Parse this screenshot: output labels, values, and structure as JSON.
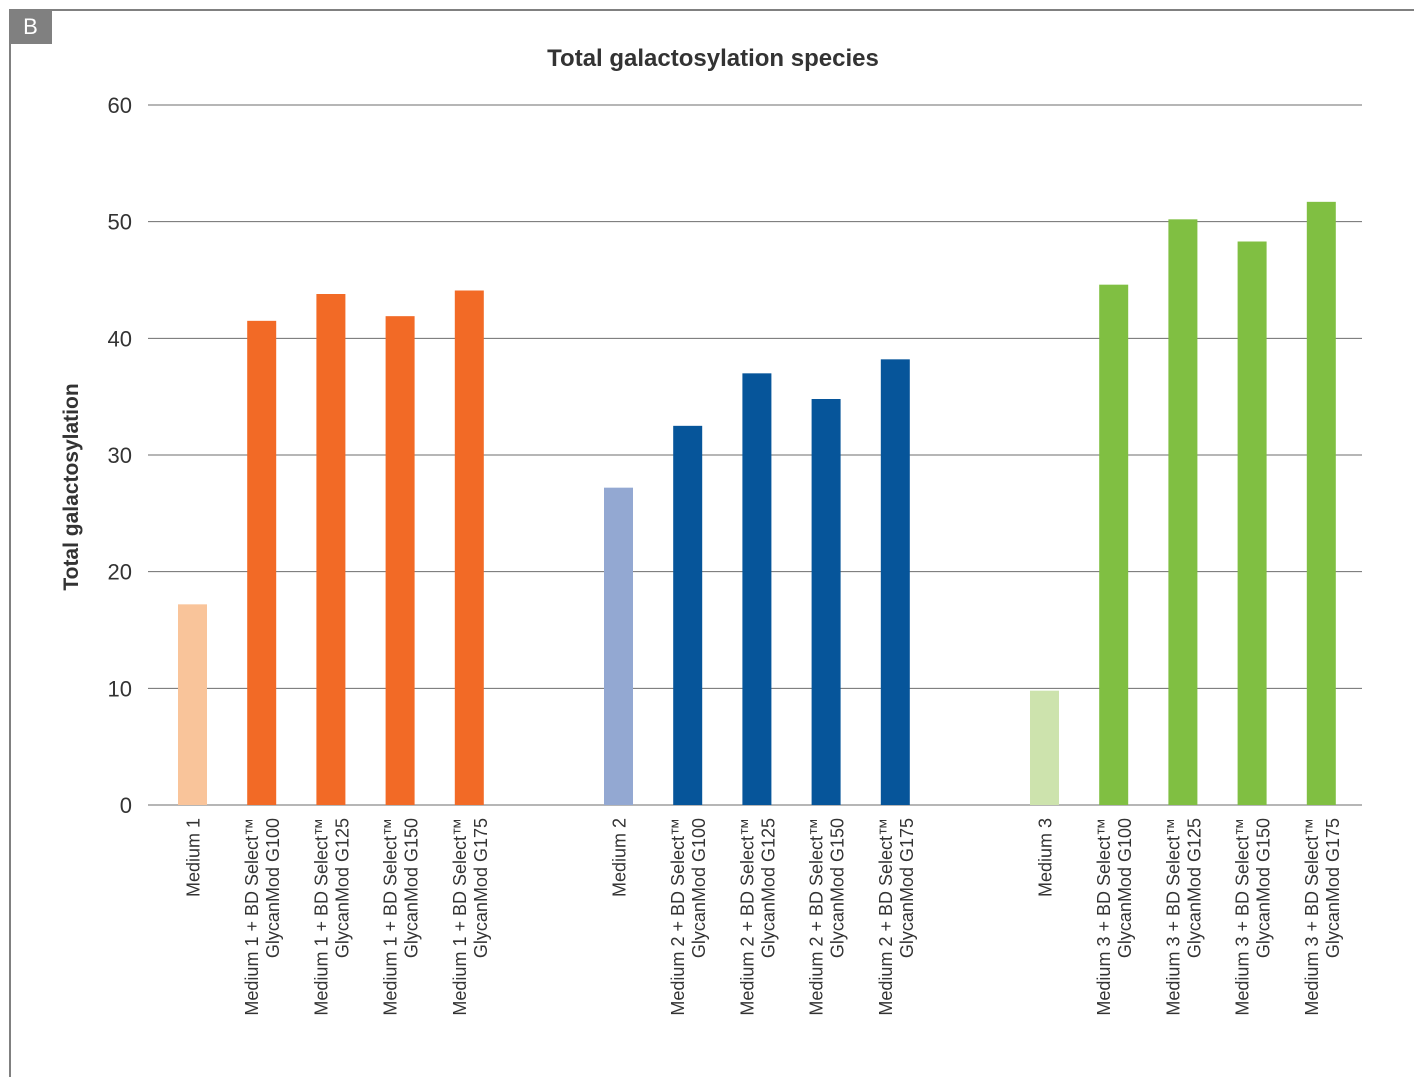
{
  "panel_label": "B",
  "chart_data": {
    "type": "bar",
    "title": "Total galactosylation species",
    "xlabel": "",
    "ylabel": "Total galactosylation",
    "ylim": [
      0,
      60
    ],
    "yticks": [
      0,
      10,
      20,
      30,
      40,
      50,
      60
    ],
    "grid": true,
    "legend": "none",
    "groups": [
      {
        "bars": [
          {
            "label": [
              "Medium  1"
            ],
            "value": 17.2,
            "color": "#f9c49a"
          },
          {
            "label": [
              "Medium 1 + BD Select™",
              "GlycanMod G100"
            ],
            "value": 41.5,
            "color": "#f26a26"
          },
          {
            "label": [
              "Medium 1 + BD Select™",
              "GlycanMod G125"
            ],
            "value": 43.8,
            "color": "#f26a26"
          },
          {
            "label": [
              "Medium 1 + BD Select™",
              "GlycanMod G150"
            ],
            "value": 41.9,
            "color": "#f26a26"
          },
          {
            "label": [
              "Medium 1 + BD Select™",
              "GlycanMod G175"
            ],
            "value": 44.1,
            "color": "#f26a26"
          }
        ]
      },
      {
        "bars": [
          {
            "label": [
              "Medium  2"
            ],
            "value": 27.2,
            "color": "#93a8d2"
          },
          {
            "label": [
              "Medium 2 + BD Select™",
              "GlycanMod G100"
            ],
            "value": 32.5,
            "color": "#06559a"
          },
          {
            "label": [
              "Medium 2 + BD Select™",
              "GlycanMod G125"
            ],
            "value": 37.0,
            "color": "#06559a"
          },
          {
            "label": [
              "Medium 2 + BD Select™",
              "GlycanMod G150"
            ],
            "value": 34.8,
            "color": "#06559a"
          },
          {
            "label": [
              "Medium 2 + BD Select™",
              "GlycanMod G175"
            ],
            "value": 38.2,
            "color": "#06559a"
          }
        ]
      },
      {
        "bars": [
          {
            "label": [
              "Medium  3"
            ],
            "value": 9.8,
            "color": "#cde3ad"
          },
          {
            "label": [
              "Medium 3 + BD Select™",
              "GlycanMod G100"
            ],
            "value": 44.6,
            "color": "#80bf42"
          },
          {
            "label": [
              "Medium 3 + BD Select™",
              "GlycanMod G125"
            ],
            "value": 50.2,
            "color": "#80bf42"
          },
          {
            "label": [
              "Medium 3 + BD Select™",
              "GlycanMod G150"
            ],
            "value": 48.3,
            "color": "#80bf42"
          },
          {
            "label": [
              "Medium 3 + BD Select™",
              "GlycanMod G175"
            ],
            "value": 51.7,
            "color": "#80bf42"
          }
        ]
      }
    ]
  }
}
